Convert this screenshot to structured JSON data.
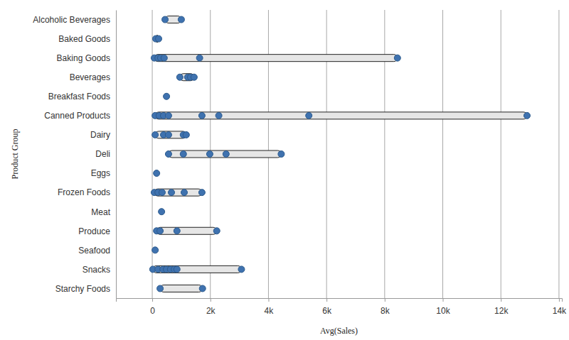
{
  "chart_data": {
    "type": "range",
    "orientation": "horizontal",
    "x_label": "Avg(Sales)",
    "y_label": "Product Group",
    "categories": [
      "Alcoholic Beverages",
      "Baked Goods",
      "Baking Goods",
      "Beverages",
      "Breakfast Foods",
      "Canned Products",
      "Dairy",
      "Deli",
      "Eggs",
      "Frozen Foods",
      "Meat",
      "Produce",
      "Seafood",
      "Snacks",
      "Starchy Foods"
    ],
    "values": [
      [
        440,
        1000
      ],
      [
        120,
        220
      ],
      [
        70,
        200,
        290,
        410,
        1630,
        8440
      ],
      [
        950,
        1220,
        1320,
        1440
      ],
      [
        490
      ],
      [
        100,
        240,
        390,
        560,
        1710,
        2290,
        5390,
        12900
      ],
      [
        100,
        390,
        560,
        1070,
        1170
      ],
      [
        560,
        1070,
        1980,
        2540,
        4440
      ],
      [
        150
      ],
      [
        70,
        200,
        340,
        660,
        1100,
        1710
      ],
      [
        320
      ],
      [
        150,
        270,
        850,
        2220
      ],
      [
        100
      ],
      [
        20,
        200,
        370,
        490,
        630,
        760,
        850,
        3070
      ],
      [
        270,
        1730
      ]
    ],
    "color": "#3f72af",
    "xlim": [
      -1250,
      14100
    ],
    "xticks": [
      0,
      {
        "value": 2000,
        "label": "2k"
      },
      {
        "value": 4000,
        "label": "4k"
      },
      {
        "value": 6000,
        "label": "6k"
      },
      {
        "value": 8000,
        "label": "8k"
      },
      {
        "value": 10000,
        "label": "10k"
      },
      {
        "value": 12000,
        "label": "12k"
      },
      {
        "value": 14000,
        "label": "14k"
      }
    ],
    "grid": true
  }
}
